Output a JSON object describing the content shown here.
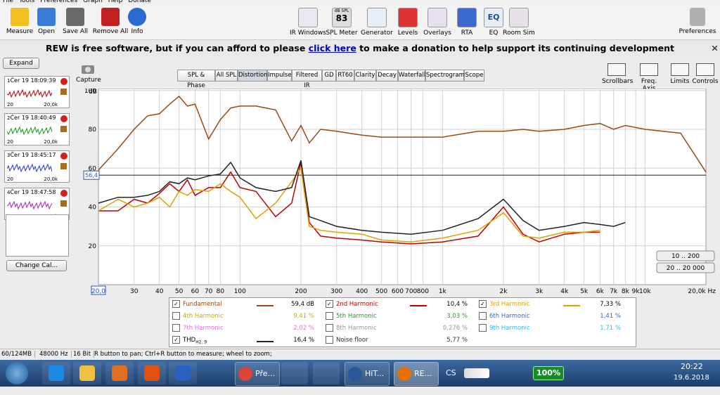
{
  "menu": [
    "File",
    "Tools",
    "Preferences",
    "Graph",
    "Help",
    "Donate"
  ],
  "toolbar": {
    "left": [
      "Measure",
      "Open",
      "Save All",
      "Remove All",
      "Info"
    ],
    "center": [
      "IR Windows",
      "SPL Meter",
      "Generator",
      "Levels",
      "Overlays",
      "RTA",
      "EQ",
      "Room Sim"
    ],
    "spl_meter": {
      "unit": "dB SPL",
      "reading": "83"
    },
    "eq_icon": "EQ",
    "right": "Preferences"
  },
  "banner": {
    "before": "REW is free software, but if you can afford to please",
    "link": "click here",
    "after": "to make a donation to help support its continuing development"
  },
  "sidebar": {
    "expand": "Expand",
    "measurements": [
      {
        "index": "1",
        "date": "Čer 19 18:09:39",
        "start": "20",
        "end": "20,0k",
        "color": "#c00000"
      },
      {
        "index": "2",
        "date": "Čer 19 18:40:49",
        "start": "20",
        "end": "20,0k",
        "color": "#1a9a1a"
      },
      {
        "index": "3",
        "date": "Čer 19 18:45:17",
        "start": "20",
        "end": "20,0k",
        "color": "#2a3ad0"
      },
      {
        "index": "4",
        "date": "Čer 19 18:47:58",
        "start": "20",
        "end": "20,0k",
        "color": "#b020c0"
      }
    ],
    "change_cal": "Change Cal..."
  },
  "capture": "Capture",
  "tabs": {
    "items": [
      "SPL & Phase",
      "All SPL",
      "Distortion",
      "Impulse",
      "Filtered IR",
      "GD",
      "RT60",
      "Clarity",
      "Decay",
      "Waterfall",
      "Spectrogram",
      "Scope"
    ],
    "active": 2
  },
  "view_tools": [
    "Scrollbars",
    "Freq. Axis",
    "Limits",
    "Controls"
  ],
  "chart_data": {
    "type": "line",
    "y_label": "dB",
    "log_x": true,
    "grid": true,
    "x": [
      20,
      25,
      30,
      35,
      40,
      45,
      50,
      55,
      60,
      70,
      80,
      90,
      100,
      120,
      150,
      180,
      200,
      220,
      250,
      300,
      400,
      500,
      700,
      1000,
      1500,
      2000,
      2500,
      3000,
      4000,
      5000,
      6000,
      7000,
      8000,
      10000,
      15000,
      20000
    ],
    "xlim": [
      20,
      20000
    ],
    "xticks": [
      30,
      40,
      50,
      60,
      70,
      80,
      100,
      200,
      300,
      400,
      500,
      600,
      700,
      800,
      {
        "value": 1000,
        "label": "1k"
      },
      {
        "value": 2000,
        "label": "2k"
      },
      {
        "value": 3000,
        "label": "3k"
      },
      {
        "value": 4000,
        "label": "4k"
      },
      {
        "value": 5000,
        "label": "5k"
      },
      {
        "value": 6000,
        "label": "6k"
      },
      {
        "value": 7000,
        "label": "7k"
      },
      {
        "value": 8000,
        "label": "8k"
      },
      {
        "value": 9000,
        "label": "9k"
      },
      {
        "value": 10000,
        "label": "10k"
      }
    ],
    "x_start_label": "20,0",
    "x_end_label": "20,0k Hz",
    "ylim": [
      0,
      101
    ],
    "yticks": [
      20,
      40,
      60,
      80,
      100
    ],
    "cursor": {
      "value": 56.4,
      "label": "56,4"
    },
    "zoom_buttons": [
      "10 .. 200",
      "20 .. 20 000"
    ],
    "series": [
      {
        "name": "Fundamental",
        "color": "#9a4a12",
        "checked": true,
        "reading": "59,4 dB",
        "values": [
          59,
          70,
          80,
          87,
          88,
          93,
          97,
          92,
          93,
          75,
          85,
          91,
          92,
          92,
          90,
          74,
          82,
          73,
          80,
          79,
          77,
          76,
          76,
          76,
          79,
          79,
          80,
          79,
          80,
          82,
          83,
          80,
          82,
          80,
          78,
          58
        ]
      },
      {
        "name": "2nd Harmonic",
        "color": "#c00000",
        "checked": true,
        "reading": "10,4 %",
        "values": [
          38,
          38,
          44,
          42,
          47,
          52,
          48,
          54,
          46,
          50,
          50,
          58,
          50,
          48,
          35,
          42,
          63,
          32,
          25,
          24,
          23,
          22,
          21,
          22,
          25,
          40,
          26,
          22,
          26,
          27,
          27,
          null,
          null,
          null,
          null,
          null
        ]
      },
      {
        "name": "3rd Harmonic",
        "color": "#e0a000",
        "checked": true,
        "reading": "7,33 %",
        "values": [
          38,
          44,
          40,
          42,
          45,
          40,
          48,
          46,
          49,
          48,
          52,
          48,
          45,
          34,
          42,
          53,
          60,
          30,
          28,
          27,
          26,
          23,
          22,
          24,
          28,
          37,
          25,
          24,
          27,
          27,
          28,
          null,
          null,
          null,
          null,
          null
        ]
      },
      {
        "name": "4th Harmonic",
        "color": "#c0b000",
        "checked": false,
        "reading": "9,41 %"
      },
      {
        "name": "5th Harmonic",
        "color": "#2a9a2a",
        "checked": false,
        "reading": "3,03 %"
      },
      {
        "name": "6th Harmonic",
        "color": "#3366cc",
        "checked": false,
        "reading": "1,41 %"
      },
      {
        "name": "7th Harmonic",
        "color": "#e070e0",
        "checked": false,
        "reading": "2,02 %"
      },
      {
        "name": "8th Harmonic",
        "color": "#999999",
        "checked": false,
        "reading": "0,276 %"
      },
      {
        "name": "9th Harmonic",
        "color": "#33bbee",
        "checked": false,
        "reading": "1,71 %"
      },
      {
        "name": "THD",
        "name_sub": "H2..9",
        "color": "#222222",
        "checked": true,
        "reading": "16,4 %",
        "values": [
          42,
          45,
          45,
          46,
          48,
          53,
          52,
          55,
          54,
          56,
          57,
          63,
          55,
          50,
          48,
          50,
          64,
          35,
          33,
          30,
          28,
          27,
          26,
          28,
          34,
          44,
          33,
          28,
          30,
          32,
          31,
          30,
          32,
          null,
          null,
          null
        ]
      },
      {
        "name": "Noise floor",
        "color": "#333333",
        "checked": false,
        "reading": "5,77 %"
      }
    ]
  },
  "status": [
    "60/124MB",
    "48000 Hz",
    "16 Bit",
    "R button to pan; Ctrl+R button to measure; wheel to zoom;"
  ],
  "taskbar": {
    "items": [
      "Pře...",
      "HiT...",
      "RE..."
    ],
    "language": "CS",
    "battery": "100%",
    "time": "20:22",
    "date": "19.6.2018"
  }
}
